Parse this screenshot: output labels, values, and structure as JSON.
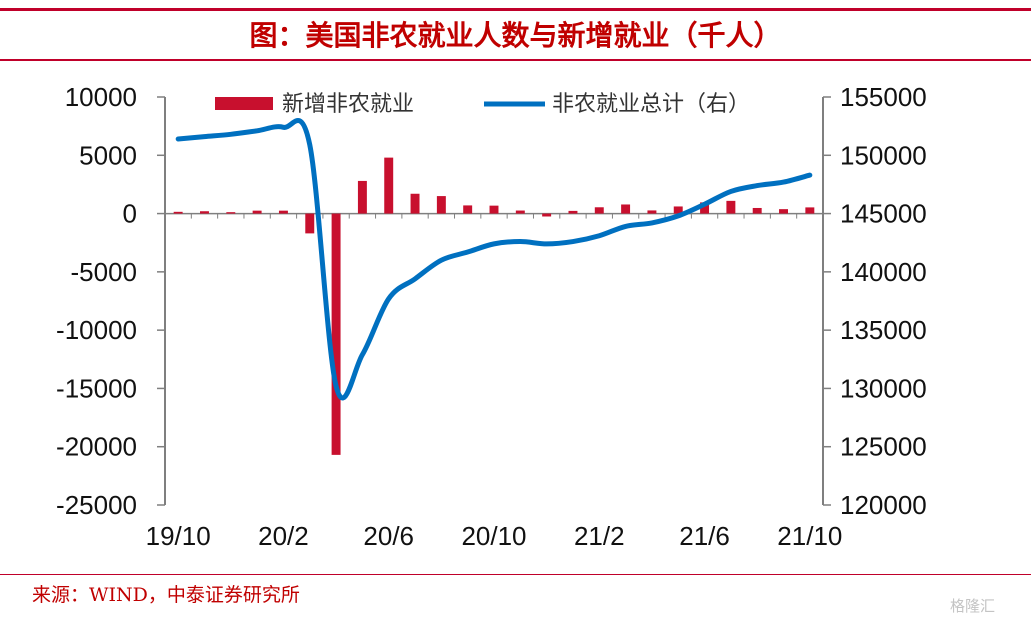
{
  "title": "图：美国非农就业人数与新增就业（千人）",
  "source": "来源：WIND，中泰证券研究所",
  "watermark": "格隆汇",
  "colors": {
    "accent": "#c0002a",
    "bar": "#c8102e",
    "line": "#0070c0",
    "axis": "#7f7f7f",
    "title": "#c00000"
  },
  "chart_data": {
    "type": "bar+line",
    "categories": [
      "19/10",
      "19/11",
      "19/12",
      "20/1",
      "20/2",
      "20/3",
      "20/4",
      "20/5",
      "20/6",
      "20/7",
      "20/8",
      "20/9",
      "20/10",
      "20/11",
      "20/12",
      "21/1",
      "21/2",
      "21/3",
      "21/4",
      "21/5",
      "21/6",
      "21/7",
      "21/8",
      "21/9",
      "21/10"
    ],
    "xtick_labels": [
      "19/10",
      "20/2",
      "20/6",
      "20/10",
      "21/2",
      "21/6",
      "21/10"
    ],
    "series": [
      {
        "name": "新增非农就业",
        "type": "bar",
        "axis": "left",
        "values": [
          150,
          200,
          120,
          250,
          250,
          -1700,
          -20700,
          2800,
          4800,
          1700,
          1500,
          700,
          680,
          260,
          -250,
          230,
          540,
          780,
          270,
          610,
          960,
          1090,
          480,
          380,
          530
        ]
      },
      {
        "name": "非农就业总计（右）",
        "type": "line",
        "axis": "right",
        "values": [
          151400,
          151600,
          151800,
          152100,
          152400,
          150900,
          130200,
          132900,
          137700,
          139400,
          141000,
          141700,
          142400,
          142600,
          142400,
          142600,
          143100,
          143900,
          144200,
          144800,
          145800,
          146900,
          147400,
          147700,
          148300
        ]
      }
    ],
    "left_axis": {
      "ylim": [
        -25000,
        10000
      ],
      "ticks": [
        "10000",
        "5000",
        "0",
        "-5000",
        "-10000",
        "-15000",
        "-20000",
        "-25000"
      ]
    },
    "right_axis": {
      "ylim": [
        120000,
        155000
      ],
      "ticks": [
        "155000",
        "150000",
        "145000",
        "140000",
        "135000",
        "130000",
        "125000",
        "120000"
      ]
    },
    "legend": {
      "placement": "top",
      "entries": [
        "新增非农就业",
        "非农就业总计（右）"
      ]
    },
    "grid": false
  }
}
